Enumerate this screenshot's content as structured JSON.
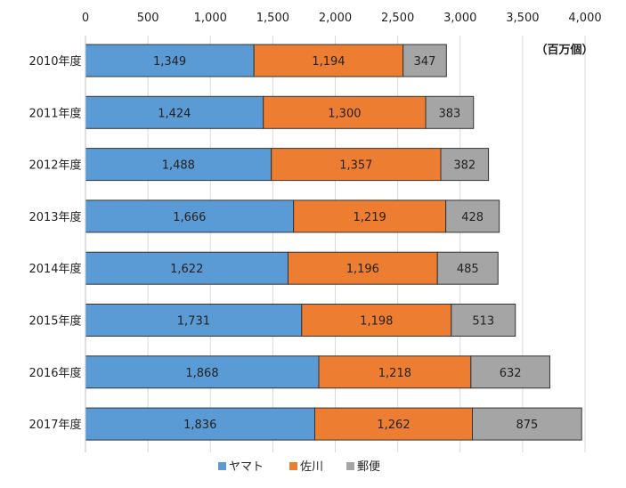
{
  "chart_data": {
    "type": "bar",
    "orientation": "horizontal",
    "stacked": true,
    "title": "",
    "unit_label": "（百万個）",
    "categories": [
      "2010年度",
      "2011年度",
      "2012年度",
      "2013年度",
      "2014年度",
      "2015年度",
      "2016年度",
      "2017年度"
    ],
    "xlim": [
      0,
      4000
    ],
    "xticks": [
      0,
      500,
      1000,
      1500,
      2000,
      2500,
      3000,
      3500,
      4000
    ],
    "xtick_labels": [
      "0",
      "500",
      "1,000",
      "1,500",
      "2,000",
      "2,500",
      "3,000",
      "3,500",
      "4,000"
    ],
    "grid": "vertical",
    "legend_position": "bottom",
    "series": [
      {
        "name": "ヤマト",
        "color": "#5b9bd5",
        "values": [
          1349,
          1424,
          1488,
          1666,
          1622,
          1731,
          1868,
          1836
        ],
        "labels": [
          "1,349",
          "1,424",
          "1,488",
          "1,666",
          "1,622",
          "1,731",
          "1,868",
          "1,836"
        ]
      },
      {
        "name": "佐川",
        "color": "#ed7d31",
        "values": [
          1194,
          1300,
          1357,
          1219,
          1196,
          1198,
          1218,
          1262
        ],
        "labels": [
          "1,194",
          "1,300",
          "1,357",
          "1,219",
          "1,196",
          "1,198",
          "1,218",
          "1,262"
        ]
      },
      {
        "name": "郵便",
        "color": "#a5a5a5",
        "values": [
          347,
          383,
          382,
          428,
          485,
          513,
          632,
          875
        ],
        "labels": [
          "347",
          "383",
          "382",
          "428",
          "485",
          "513",
          "632",
          "875"
        ]
      }
    ]
  }
}
